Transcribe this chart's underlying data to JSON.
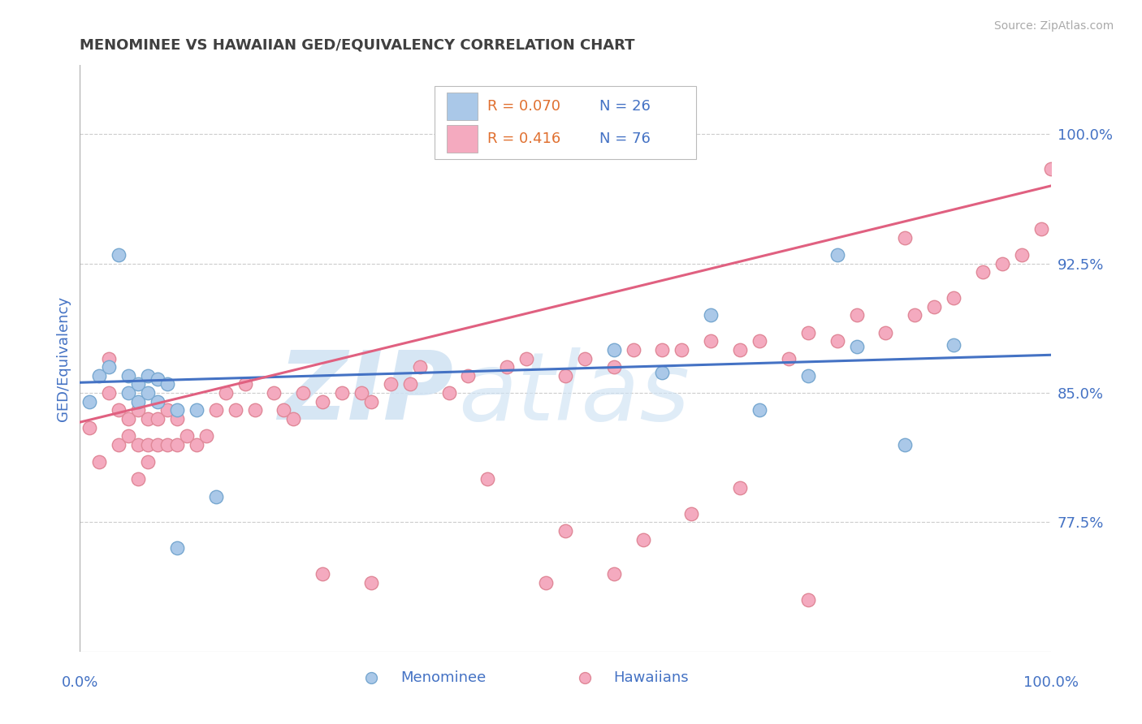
{
  "title": "MENOMINEE VS HAWAIIAN GED/EQUIVALENCY CORRELATION CHART",
  "source": "Source: ZipAtlas.com",
  "ylabel": "GED/Equivalency",
  "xmin": 0.0,
  "xmax": 1.0,
  "ymin": 0.7,
  "ymax": 1.04,
  "yticks": [
    0.775,
    0.85,
    0.925,
    1.0
  ],
  "ytick_labels": [
    "77.5%",
    "85.0%",
    "92.5%",
    "100.0%"
  ],
  "menominee_x": [
    0.01,
    0.02,
    0.03,
    0.04,
    0.05,
    0.05,
    0.06,
    0.06,
    0.07,
    0.07,
    0.08,
    0.08,
    0.09,
    0.1,
    0.1,
    0.12,
    0.14,
    0.55,
    0.6,
    0.65,
    0.7,
    0.75,
    0.78,
    0.8,
    0.85,
    0.9
  ],
  "menominee_y": [
    0.845,
    0.86,
    0.865,
    0.93,
    0.85,
    0.86,
    0.845,
    0.855,
    0.85,
    0.86,
    0.845,
    0.858,
    0.855,
    0.84,
    0.76,
    0.84,
    0.79,
    0.875,
    0.862,
    0.895,
    0.84,
    0.86,
    0.93,
    0.877,
    0.82,
    0.878
  ],
  "hawaiians_x": [
    0.01,
    0.02,
    0.03,
    0.03,
    0.04,
    0.04,
    0.05,
    0.05,
    0.06,
    0.06,
    0.06,
    0.07,
    0.07,
    0.07,
    0.08,
    0.08,
    0.09,
    0.09,
    0.1,
    0.1,
    0.11,
    0.12,
    0.13,
    0.14,
    0.15,
    0.16,
    0.17,
    0.18,
    0.2,
    0.21,
    0.22,
    0.23,
    0.25,
    0.27,
    0.29,
    0.3,
    0.32,
    0.34,
    0.35,
    0.38,
    0.4,
    0.44,
    0.46,
    0.5,
    0.52,
    0.55,
    0.57,
    0.6,
    0.62,
    0.65,
    0.68,
    0.7,
    0.73,
    0.75,
    0.78,
    0.8,
    0.83,
    0.86,
    0.88,
    0.9,
    0.93,
    0.95,
    0.97,
    0.99,
    1.0,
    0.5,
    0.42,
    0.48,
    0.58,
    0.63,
    0.68,
    0.85,
    0.75,
    0.55,
    0.25,
    0.3
  ],
  "hawaiians_y": [
    0.83,
    0.81,
    0.85,
    0.87,
    0.84,
    0.82,
    0.835,
    0.825,
    0.84,
    0.82,
    0.8,
    0.835,
    0.81,
    0.82,
    0.835,
    0.82,
    0.84,
    0.82,
    0.835,
    0.82,
    0.825,
    0.82,
    0.825,
    0.84,
    0.85,
    0.84,
    0.855,
    0.84,
    0.85,
    0.84,
    0.835,
    0.85,
    0.845,
    0.85,
    0.85,
    0.845,
    0.855,
    0.855,
    0.865,
    0.85,
    0.86,
    0.865,
    0.87,
    0.86,
    0.87,
    0.865,
    0.875,
    0.875,
    0.875,
    0.88,
    0.875,
    0.88,
    0.87,
    0.885,
    0.88,
    0.895,
    0.885,
    0.895,
    0.9,
    0.905,
    0.92,
    0.925,
    0.93,
    0.945,
    0.98,
    0.77,
    0.8,
    0.74,
    0.765,
    0.78,
    0.795,
    0.94,
    0.73,
    0.745,
    0.745,
    0.74
  ],
  "menominee_line_color": "#4472c4",
  "hawaiians_line_color": "#e06080",
  "menominee_marker_facecolor": "#aac8e8",
  "menominee_marker_edgecolor": "#78a8d0",
  "hawaiians_marker_facecolor": "#f4aabf",
  "hawaiians_marker_edgecolor": "#e08898",
  "legend_R_color": "#e07030",
  "legend_N_color": "#4472c4",
  "title_color": "#404040",
  "axis_label_color": "#4472c4",
  "grid_color": "#cccccc",
  "background_color": "#ffffff",
  "R_menominee": "0.070",
  "N_menominee": "26",
  "R_hawaiians": "0.416",
  "N_hawaiians": "76",
  "label_menominee": "Menominee",
  "label_hawaiians": "Hawaiians",
  "men_trend_x": [
    0.0,
    1.0
  ],
  "men_trend_y": [
    0.856,
    0.872
  ],
  "haw_trend_x": [
    0.0,
    1.0
  ],
  "haw_trend_y": [
    0.833,
    0.97
  ]
}
